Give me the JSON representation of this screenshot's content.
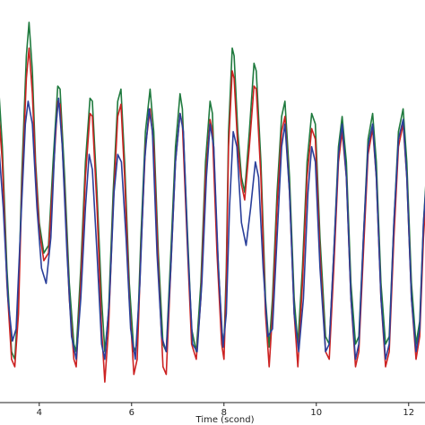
{
  "chart_data": {
    "type": "line",
    "title": "",
    "xlabel": "Time (scond)",
    "ylabel": "",
    "xlim": [
      2.9,
      12.4
    ],
    "ylim": [
      -1.25,
      1.32
    ],
    "x_ticks": [
      4,
      6,
      8,
      10,
      12
    ],
    "x_tick_labels": [
      "4",
      "6",
      "8",
      "10",
      "12"
    ],
    "grid": false,
    "legend": "none",
    "series": [
      {
        "color": "#1f7a3e",
        "points": [
          [
            2.9,
            -0.05
          ],
          [
            3.0,
            0.45
          ],
          [
            3.05,
            0.85
          ],
          [
            3.1,
            0.9
          ],
          [
            3.2,
            0.4
          ],
          [
            3.3,
            -0.4
          ],
          [
            3.4,
            -0.95
          ],
          [
            3.47,
            -1.0
          ],
          [
            3.55,
            -0.6
          ],
          [
            3.62,
            0.2
          ],
          [
            3.72,
            1.0
          ],
          [
            3.78,
            1.22
          ],
          [
            3.85,
            0.9
          ],
          [
            3.92,
            0.3
          ],
          [
            4.0,
            -0.1
          ],
          [
            4.1,
            -0.3
          ],
          [
            4.2,
            -0.25
          ],
          [
            4.3,
            0.3
          ],
          [
            4.4,
            0.8
          ],
          [
            4.45,
            0.78
          ],
          [
            4.55,
            0.2
          ],
          [
            4.65,
            -0.5
          ],
          [
            4.75,
            -0.9
          ],
          [
            4.8,
            -0.95
          ],
          [
            4.9,
            -0.4
          ],
          [
            5.0,
            0.3
          ],
          [
            5.1,
            0.72
          ],
          [
            5.15,
            0.7
          ],
          [
            5.25,
            0.1
          ],
          [
            5.35,
            -0.6
          ],
          [
            5.42,
            -0.95
          ],
          [
            5.5,
            -0.7
          ],
          [
            5.6,
            0.1
          ],
          [
            5.7,
            0.7
          ],
          [
            5.77,
            0.78
          ],
          [
            5.85,
            0.3
          ],
          [
            5.95,
            -0.5
          ],
          [
            6.05,
            -0.95
          ],
          [
            6.12,
            -0.9
          ],
          [
            6.2,
            -0.2
          ],
          [
            6.3,
            0.5
          ],
          [
            6.4,
            0.78
          ],
          [
            6.48,
            0.5
          ],
          [
            6.58,
            -0.3
          ],
          [
            6.68,
            -0.9
          ],
          [
            6.75,
            -0.95
          ],
          [
            6.85,
            -0.3
          ],
          [
            6.95,
            0.4
          ],
          [
            7.05,
            0.75
          ],
          [
            7.1,
            0.65
          ],
          [
            7.2,
            -0.1
          ],
          [
            7.3,
            -0.8
          ],
          [
            7.4,
            -0.95
          ],
          [
            7.5,
            -0.5
          ],
          [
            7.6,
            0.3
          ],
          [
            7.7,
            0.7
          ],
          [
            7.75,
            0.62
          ],
          [
            7.85,
            -0.2
          ],
          [
            7.95,
            -0.8
          ],
          [
            8.0,
            -0.92
          ],
          [
            8.05,
            -0.4
          ],
          [
            8.1,
            0.5
          ],
          [
            8.18,
            1.05
          ],
          [
            8.22,
            1.0
          ],
          [
            8.3,
            0.5
          ],
          [
            8.38,
            0.2
          ],
          [
            8.45,
            0.1
          ],
          [
            8.55,
            0.5
          ],
          [
            8.65,
            0.95
          ],
          [
            8.7,
            0.9
          ],
          [
            8.8,
            0.3
          ],
          [
            8.9,
            -0.6
          ],
          [
            8.98,
            -0.92
          ],
          [
            9.05,
            -0.6
          ],
          [
            9.15,
            0.1
          ],
          [
            9.25,
            0.6
          ],
          [
            9.32,
            0.7
          ],
          [
            9.42,
            0.2
          ],
          [
            9.52,
            -0.6
          ],
          [
            9.6,
            -0.9
          ],
          [
            9.7,
            -0.4
          ],
          [
            9.8,
            0.3
          ],
          [
            9.9,
            0.62
          ],
          [
            9.98,
            0.55
          ],
          [
            10.08,
            -0.2
          ],
          [
            10.2,
            -0.85
          ],
          [
            10.28,
            -0.9
          ],
          [
            10.38,
            -0.3
          ],
          [
            10.48,
            0.4
          ],
          [
            10.56,
            0.6
          ],
          [
            10.65,
            0.3
          ],
          [
            10.75,
            -0.5
          ],
          [
            10.85,
            -0.9
          ],
          [
            10.92,
            -0.85
          ],
          [
            11.02,
            -0.2
          ],
          [
            11.12,
            0.45
          ],
          [
            11.22,
            0.62
          ],
          [
            11.3,
            0.3
          ],
          [
            11.4,
            -0.5
          ],
          [
            11.5,
            -0.9
          ],
          [
            11.58,
            -0.85
          ],
          [
            11.68,
            -0.1
          ],
          [
            11.78,
            0.5
          ],
          [
            11.88,
            0.65
          ],
          [
            11.96,
            0.3
          ],
          [
            12.06,
            -0.5
          ],
          [
            12.16,
            -0.9
          ],
          [
            12.24,
            -0.75
          ],
          [
            12.32,
            -0.1
          ],
          [
            12.4,
            0.3
          ]
        ]
      },
      {
        "color": "#cc2222",
        "points": [
          [
            2.9,
            -0.1
          ],
          [
            3.0,
            0.35
          ],
          [
            3.05,
            0.7
          ],
          [
            3.1,
            0.72
          ],
          [
            3.2,
            0.3
          ],
          [
            3.3,
            -0.5
          ],
          [
            3.4,
            -1.0
          ],
          [
            3.47,
            -1.05
          ],
          [
            3.55,
            -0.7
          ],
          [
            3.62,
            0.1
          ],
          [
            3.72,
            0.85
          ],
          [
            3.78,
            1.05
          ],
          [
            3.85,
            0.75
          ],
          [
            3.92,
            0.25
          ],
          [
            4.0,
            -0.15
          ],
          [
            4.1,
            -0.35
          ],
          [
            4.2,
            -0.3
          ],
          [
            4.3,
            0.2
          ],
          [
            4.4,
            0.7
          ],
          [
            4.45,
            0.68
          ],
          [
            4.55,
            0.1
          ],
          [
            4.65,
            -0.6
          ],
          [
            4.75,
            -1.0
          ],
          [
            4.8,
            -1.05
          ],
          [
            4.9,
            -0.5
          ],
          [
            5.0,
            0.2
          ],
          [
            5.1,
            0.62
          ],
          [
            5.15,
            0.6
          ],
          [
            5.25,
            0.0
          ],
          [
            5.35,
            -0.8
          ],
          [
            5.42,
            -1.15
          ],
          [
            5.5,
            -0.8
          ],
          [
            5.6,
            0.0
          ],
          [
            5.7,
            0.6
          ],
          [
            5.77,
            0.68
          ],
          [
            5.85,
            0.2
          ],
          [
            5.95,
            -0.6
          ],
          [
            6.05,
            -1.1
          ],
          [
            6.12,
            -1.0
          ],
          [
            6.2,
            -0.3
          ],
          [
            6.3,
            0.4
          ],
          [
            6.4,
            0.65
          ],
          [
            6.48,
            0.4
          ],
          [
            6.58,
            -0.4
          ],
          [
            6.68,
            -1.05
          ],
          [
            6.75,
            -1.1
          ],
          [
            6.85,
            -0.4
          ],
          [
            6.95,
            0.3
          ],
          [
            7.05,
            0.62
          ],
          [
            7.1,
            0.55
          ],
          [
            7.2,
            -0.2
          ],
          [
            7.3,
            -0.9
          ],
          [
            7.4,
            -1.0
          ],
          [
            7.5,
            -0.6
          ],
          [
            7.6,
            0.2
          ],
          [
            7.7,
            0.58
          ],
          [
            7.75,
            0.5
          ],
          [
            7.85,
            -0.3
          ],
          [
            7.95,
            -0.9
          ],
          [
            8.0,
            -1.0
          ],
          [
            8.05,
            -0.5
          ],
          [
            8.1,
            0.4
          ],
          [
            8.18,
            0.9
          ],
          [
            8.22,
            0.85
          ],
          [
            8.3,
            0.4
          ],
          [
            8.38,
            0.15
          ],
          [
            8.45,
            0.05
          ],
          [
            8.55,
            0.4
          ],
          [
            8.65,
            0.8
          ],
          [
            8.7,
            0.78
          ],
          [
            8.8,
            0.2
          ],
          [
            8.9,
            -0.7
          ],
          [
            8.98,
            -1.05
          ],
          [
            9.05,
            -0.7
          ],
          [
            9.15,
            0.0
          ],
          [
            9.25,
            0.5
          ],
          [
            9.32,
            0.6
          ],
          [
            9.42,
            0.1
          ],
          [
            9.52,
            -0.7
          ],
          [
            9.6,
            -1.05
          ],
          [
            9.7,
            -0.5
          ],
          [
            9.8,
            0.2
          ],
          [
            9.9,
            0.52
          ],
          [
            9.98,
            0.45
          ],
          [
            10.08,
            -0.3
          ],
          [
            10.2,
            -0.95
          ],
          [
            10.28,
            -1.0
          ],
          [
            10.38,
            -0.4
          ],
          [
            10.48,
            0.3
          ],
          [
            10.56,
            0.5
          ],
          [
            10.65,
            0.2
          ],
          [
            10.75,
            -0.6
          ],
          [
            10.85,
            -1.05
          ],
          [
            10.92,
            -0.95
          ],
          [
            11.02,
            -0.3
          ],
          [
            11.12,
            0.35
          ],
          [
            11.22,
            0.52
          ],
          [
            11.3,
            0.2
          ],
          [
            11.4,
            -0.6
          ],
          [
            11.5,
            -1.05
          ],
          [
            11.58,
            -0.95
          ],
          [
            11.68,
            -0.2
          ],
          [
            11.78,
            0.4
          ],
          [
            11.88,
            0.55
          ],
          [
            11.96,
            0.2
          ],
          [
            12.06,
            -0.6
          ],
          [
            12.16,
            -1.0
          ],
          [
            12.24,
            -0.85
          ],
          [
            12.32,
            -0.2
          ],
          [
            12.4,
            0.2
          ]
        ]
      },
      {
        "color": "#2a3f9a",
        "points": [
          [
            2.9,
            -0.05
          ],
          [
            3.0,
            0.3
          ],
          [
            3.05,
            0.48
          ],
          [
            3.12,
            0.42
          ],
          [
            3.22,
            0.0
          ],
          [
            3.32,
            -0.6
          ],
          [
            3.42,
            -0.88
          ],
          [
            3.5,
            -0.8
          ],
          [
            3.6,
            -0.1
          ],
          [
            3.7,
            0.55
          ],
          [
            3.76,
            0.7
          ],
          [
            3.85,
            0.55
          ],
          [
            3.95,
            0.0
          ],
          [
            4.05,
            -0.4
          ],
          [
            4.15,
            -0.5
          ],
          [
            4.25,
            -0.2
          ],
          [
            4.35,
            0.5
          ],
          [
            4.42,
            0.72
          ],
          [
            4.5,
            0.4
          ],
          [
            4.6,
            -0.3
          ],
          [
            4.7,
            -0.85
          ],
          [
            4.8,
            -1.0
          ],
          [
            4.9,
            -0.6
          ],
          [
            5.0,
            0.0
          ],
          [
            5.08,
            0.35
          ],
          [
            5.15,
            0.25
          ],
          [
            5.25,
            -0.3
          ],
          [
            5.35,
            -0.9
          ],
          [
            5.42,
            -1.0
          ],
          [
            5.52,
            -0.6
          ],
          [
            5.62,
            0.1
          ],
          [
            5.7,
            0.35
          ],
          [
            5.78,
            0.3
          ],
          [
            5.88,
            -0.2
          ],
          [
            5.98,
            -0.8
          ],
          [
            6.08,
            -1.0
          ],
          [
            6.18,
            -0.5
          ],
          [
            6.28,
            0.3
          ],
          [
            6.38,
            0.65
          ],
          [
            6.45,
            0.5
          ],
          [
            6.55,
            -0.3
          ],
          [
            6.65,
            -0.85
          ],
          [
            6.75,
            -0.95
          ],
          [
            6.85,
            -0.4
          ],
          [
            6.95,
            0.3
          ],
          [
            7.05,
            0.62
          ],
          [
            7.12,
            0.5
          ],
          [
            7.22,
            -0.3
          ],
          [
            7.32,
            -0.9
          ],
          [
            7.42,
            -0.95
          ],
          [
            7.52,
            -0.5
          ],
          [
            7.62,
            0.2
          ],
          [
            7.7,
            0.55
          ],
          [
            7.78,
            0.4
          ],
          [
            7.88,
            -0.4
          ],
          [
            7.98,
            -0.92
          ],
          [
            8.05,
            -0.7
          ],
          [
            8.12,
            0.0
          ],
          [
            8.2,
            0.5
          ],
          [
            8.28,
            0.4
          ],
          [
            8.38,
            -0.1
          ],
          [
            8.48,
            -0.25
          ],
          [
            8.58,
            0.0
          ],
          [
            8.68,
            0.3
          ],
          [
            8.75,
            0.2
          ],
          [
            8.85,
            -0.4
          ],
          [
            8.95,
            -0.85
          ],
          [
            9.05,
            -0.8
          ],
          [
            9.15,
            -0.2
          ],
          [
            9.25,
            0.4
          ],
          [
            9.32,
            0.55
          ],
          [
            9.42,
            0.1
          ],
          [
            9.52,
            -0.7
          ],
          [
            9.62,
            -0.95
          ],
          [
            9.72,
            -0.6
          ],
          [
            9.82,
            0.1
          ],
          [
            9.9,
            0.4
          ],
          [
            9.98,
            0.3
          ],
          [
            10.08,
            -0.4
          ],
          [
            10.2,
            -0.95
          ],
          [
            10.28,
            -0.9
          ],
          [
            10.38,
            -0.3
          ],
          [
            10.48,
            0.35
          ],
          [
            10.56,
            0.55
          ],
          [
            10.65,
            0.2
          ],
          [
            10.75,
            -0.6
          ],
          [
            10.85,
            -1.0
          ],
          [
            10.92,
            -0.9
          ],
          [
            11.02,
            -0.2
          ],
          [
            11.12,
            0.4
          ],
          [
            11.22,
            0.55
          ],
          [
            11.3,
            0.2
          ],
          [
            11.4,
            -0.6
          ],
          [
            11.5,
            -1.0
          ],
          [
            11.58,
            -0.9
          ],
          [
            11.68,
            -0.1
          ],
          [
            11.78,
            0.45
          ],
          [
            11.88,
            0.58
          ],
          [
            11.96,
            0.2
          ],
          [
            12.06,
            -0.6
          ],
          [
            12.16,
            -0.95
          ],
          [
            12.24,
            -0.8
          ],
          [
            12.32,
            -0.1
          ],
          [
            12.4,
            0.25
          ]
        ]
      }
    ]
  }
}
